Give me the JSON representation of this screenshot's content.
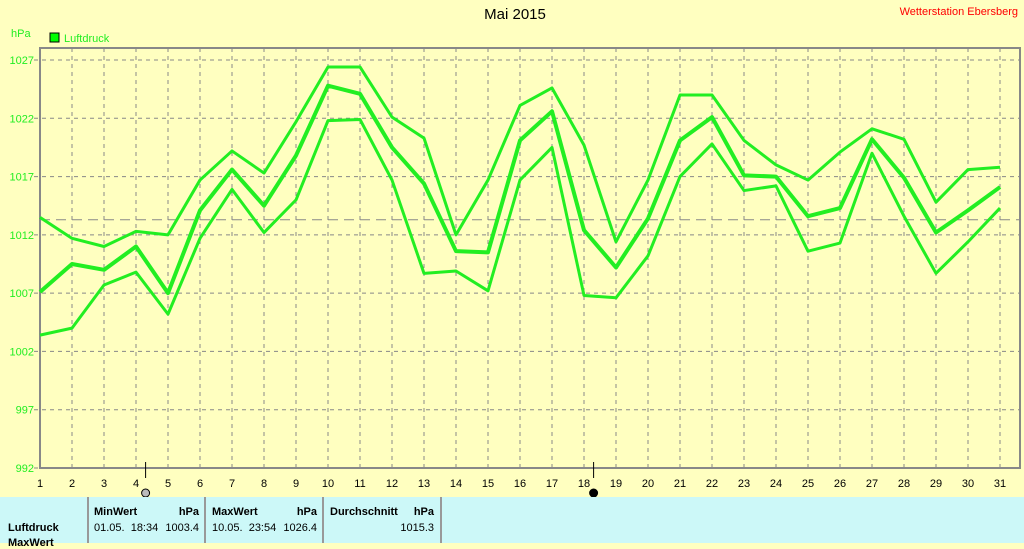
{
  "title": "Mai 2015",
  "station": "Wetterstation Ebersberg",
  "chart_data": {
    "type": "line",
    "title": "Mai 2015",
    "ylabel": "hPa",
    "xlabel": "",
    "ylim": [
      992,
      1027
    ],
    "yticks": [
      992,
      997,
      1002,
      1007,
      1012,
      1017,
      1022,
      1027
    ],
    "x": [
      1,
      2,
      3,
      4,
      5,
      6,
      7,
      8,
      9,
      10,
      11,
      12,
      13,
      14,
      15,
      16,
      17,
      18,
      19,
      20,
      21,
      22,
      23,
      24,
      25,
      26,
      27,
      28,
      29,
      30,
      31
    ],
    "grid": true,
    "legend": "top-left",
    "legend_label": "Luftdruck",
    "reference_line": 1013.3,
    "markers": [
      4.3,
      18.3
    ],
    "color": "#22ee22",
    "series": [
      {
        "values": [
          1013.5,
          1011.7,
          1011.0,
          1012.3,
          1012.0,
          1016.7,
          1019.2,
          1017.3,
          1021.7,
          1026.4,
          1026.4,
          1022.1,
          1020.3,
          1012.0,
          1016.7,
          1023.1,
          1024.6,
          1019.7,
          1011.4,
          1016.7,
          1024.0,
          1024.0,
          1020.1,
          1018.0,
          1016.7,
          1019.1,
          1021.1,
          1020.2,
          1014.8,
          1017.6,
          1017.8
        ]
      },
      {
        "values": [
          1007.1,
          1009.5,
          1009.0,
          1011.0,
          1007.0,
          1014.1,
          1017.6,
          1014.5,
          1018.8,
          1024.8,
          1024.1,
          1019.5,
          1016.4,
          1010.6,
          1010.5,
          1020.1,
          1022.6,
          1012.4,
          1009.2,
          1013.4,
          1020.1,
          1022.1,
          1017.1,
          1017.0,
          1013.6,
          1014.3,
          1020.2,
          1016.9,
          1012.2,
          1014.1,
          1016.1
        ]
      },
      {
        "values": [
          1003.4,
          1004.0,
          1007.7,
          1008.8,
          1005.2,
          1011.7,
          1015.9,
          1012.2,
          1015.0,
          1021.8,
          1021.9,
          1016.7,
          1008.7,
          1008.9,
          1007.2,
          1016.7,
          1019.5,
          1006.8,
          1006.6,
          1010.2,
          1017.0,
          1019.8,
          1015.8,
          1016.2,
          1010.6,
          1011.3,
          1019.0,
          1013.6,
          1008.7,
          1011.4,
          1014.3
        ]
      }
    ]
  },
  "table": {
    "row_label": "Luftdruck",
    "row2_label": "MaxWert",
    "min": {
      "header": "MinWert",
      "unit": "hPa",
      "time": "01.05.  18:34",
      "value": "1003.4"
    },
    "max": {
      "header": "MaxWert",
      "unit": "hPa",
      "time": "10.05.  23:54",
      "value": "1026.4"
    },
    "avg": {
      "header": "Durchschnitt",
      "unit": "hPa",
      "value": "1015.3"
    }
  }
}
